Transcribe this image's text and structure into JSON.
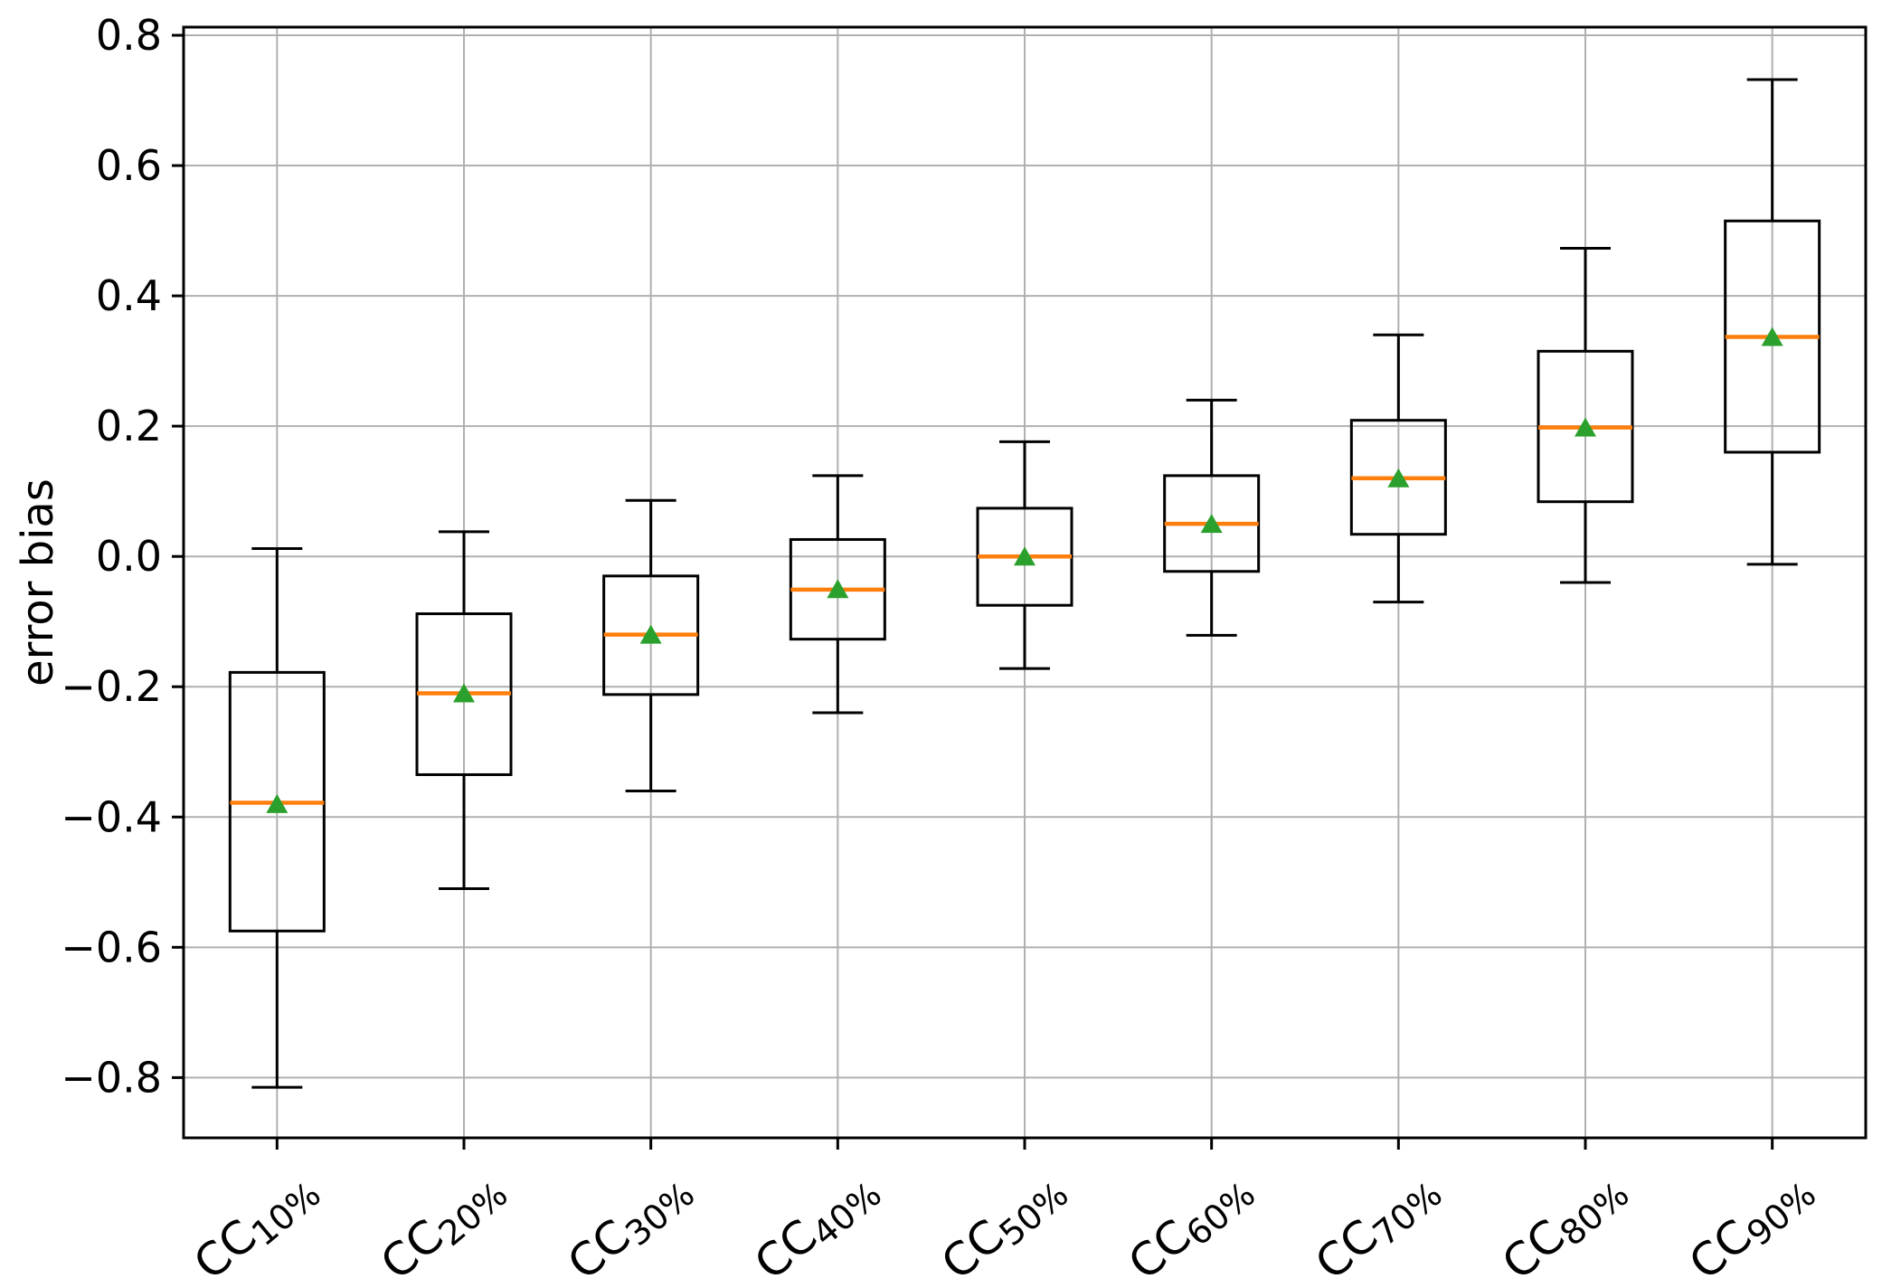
{
  "chart_data": {
    "type": "box",
    "title": "",
    "xlabel": "",
    "ylabel": "error bias",
    "grid": true,
    "legend": "none",
    "ylim": [
      -0.8925,
      0.8125
    ],
    "y_ticks": [
      {
        "value": 0.8,
        "label": "0.8"
      },
      {
        "value": 0.6,
        "label": "0.6"
      },
      {
        "value": 0.4,
        "label": "0.4"
      },
      {
        "value": 0.2,
        "label": "0.2"
      },
      {
        "value": 0.0,
        "label": "0.0"
      },
      {
        "value": -0.2,
        "label": "−0.2"
      },
      {
        "value": -0.4,
        "label": "−0.4"
      },
      {
        "value": -0.6,
        "label": "−0.6"
      },
      {
        "value": -0.8,
        "label": "−0.8"
      }
    ],
    "categories": [
      {
        "label": "CC10%",
        "base": "CC",
        "sub": "10%"
      },
      {
        "label": "CC20%",
        "base": "CC",
        "sub": "20%"
      },
      {
        "label": "CC30%",
        "base": "CC",
        "sub": "30%"
      },
      {
        "label": "CC40%",
        "base": "CC",
        "sub": "40%"
      },
      {
        "label": "CC50%",
        "base": "CC",
        "sub": "50%"
      },
      {
        "label": "CC60%",
        "base": "CC",
        "sub": "60%"
      },
      {
        "label": "CC70%",
        "base": "CC",
        "sub": "70%"
      },
      {
        "label": "CC80%",
        "base": "CC",
        "sub": "80%"
      },
      {
        "label": "CC90%",
        "base": "CC",
        "sub": "90%"
      }
    ],
    "boxes": [
      {
        "category": "CC10%",
        "whisker_low": -0.815,
        "q1": -0.575,
        "median": -0.378,
        "q3": -0.178,
        "whisker_high": 0.012,
        "mean": -0.38
      },
      {
        "category": "CC20%",
        "whisker_low": -0.51,
        "q1": -0.335,
        "median": -0.21,
        "q3": -0.088,
        "whisker_high": 0.038,
        "mean": -0.21
      },
      {
        "category": "CC30%",
        "whisker_low": -0.36,
        "q1": -0.212,
        "median": -0.12,
        "q3": -0.03,
        "whisker_high": 0.086,
        "mean": -0.12
      },
      {
        "category": "CC40%",
        "whisker_low": -0.24,
        "q1": -0.127,
        "median": -0.051,
        "q3": 0.026,
        "whisker_high": 0.124,
        "mean": -0.05
      },
      {
        "category": "CC50%",
        "whisker_low": -0.172,
        "q1": -0.075,
        "median": 0.0,
        "q3": 0.074,
        "whisker_high": 0.176,
        "mean": 0.0
      },
      {
        "category": "CC60%",
        "whisker_low": -0.121,
        "q1": -0.023,
        "median": 0.05,
        "q3": 0.124,
        "whisker_high": 0.24,
        "mean": 0.05
      },
      {
        "category": "CC70%",
        "whisker_low": -0.07,
        "q1": 0.034,
        "median": 0.12,
        "q3": 0.209,
        "whisker_high": 0.34,
        "mean": 0.12
      },
      {
        "category": "CC80%",
        "whisker_low": -0.04,
        "q1": 0.084,
        "median": 0.198,
        "q3": 0.315,
        "whisker_high": 0.473,
        "mean": 0.198
      },
      {
        "category": "CC90%",
        "whisker_low": -0.012,
        "q1": 0.16,
        "median": 0.337,
        "q3": 0.515,
        "whisker_high": 0.732,
        "mean": 0.337
      }
    ],
    "colors": {
      "box_line": "#000000",
      "whisker": "#000000",
      "median": "#ff7f0e",
      "mean_marker": "#2ca02c",
      "grid": "#b0b0b0",
      "spine": "#000000",
      "background": "#ffffff"
    }
  }
}
